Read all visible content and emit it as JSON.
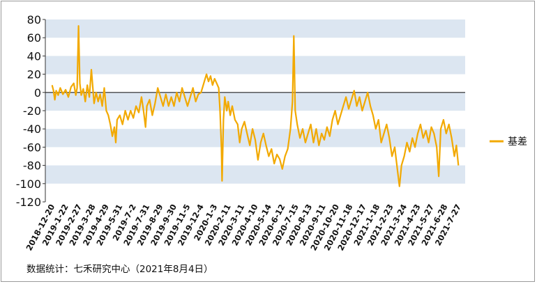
{
  "chart_data": {
    "type": "line",
    "title": "",
    "xlabel": "",
    "ylabel": "",
    "ylim": [
      -120,
      80
    ],
    "yticks": [
      -120,
      -100,
      -80,
      -60,
      -40,
      -20,
      0,
      20,
      40,
      60,
      80
    ],
    "grid": "horizontal bands",
    "legend_position": "right",
    "x_labels": [
      "2018-12-20",
      "2019-1-22",
      "2019-2-27",
      "2019-3-28",
      "2019-4-29",
      "2019-5-31",
      "2019-7-2",
      "2019-7-31",
      "2019-8-29",
      "2019-9-30",
      "2019-11-5",
      "2019-12-4",
      "2020-1-3",
      "2020-2-11",
      "2020-3-11",
      "2020-4-10",
      "2020-5-14",
      "2020-6-12",
      "2020-7-15",
      "2020-8-13",
      "2020-9-11",
      "2020-10-20",
      "2020-11-18",
      "2020-12-17",
      "2021-1-18",
      "2021-2-23",
      "2021-3-24",
      "2021-4-23",
      "2021-5-27",
      "2021-6-28",
      "2021-7-27"
    ],
    "series": [
      {
        "name": "基差",
        "color": "#f2a900",
        "values": [
          {
            "x": 0,
            "y": 8
          },
          {
            "x": 0.1,
            "y": 2
          },
          {
            "x": 0.2,
            "y": -8
          },
          {
            "x": 0.3,
            "y": 2
          },
          {
            "x": 0.45,
            "y": -3
          },
          {
            "x": 0.6,
            "y": 5
          },
          {
            "x": 0.8,
            "y": -2
          },
          {
            "x": 1.0,
            "y": 3
          },
          {
            "x": 1.2,
            "y": -5
          },
          {
            "x": 1.4,
            "y": 6
          },
          {
            "x": 1.6,
            "y": 10
          },
          {
            "x": 1.75,
            "y": -3
          },
          {
            "x": 1.85,
            "y": 5
          },
          {
            "x": 1.95,
            "y": 73
          },
          {
            "x": 2.05,
            "y": 10
          },
          {
            "x": 2.15,
            "y": -3
          },
          {
            "x": 2.3,
            "y": 4
          },
          {
            "x": 2.45,
            "y": -10
          },
          {
            "x": 2.6,
            "y": 8
          },
          {
            "x": 2.75,
            "y": -5
          },
          {
            "x": 2.9,
            "y": 25
          },
          {
            "x": 3.0,
            "y": 6
          },
          {
            "x": 3.1,
            "y": -12
          },
          {
            "x": 3.25,
            "y": 0
          },
          {
            "x": 3.4,
            "y": -10
          },
          {
            "x": 3.55,
            "y": -2
          },
          {
            "x": 3.7,
            "y": -15
          },
          {
            "x": 3.85,
            "y": 5
          },
          {
            "x": 4.0,
            "y": -20
          },
          {
            "x": 4.15,
            "y": -25
          },
          {
            "x": 4.3,
            "y": -35
          },
          {
            "x": 4.45,
            "y": -48
          },
          {
            "x": 4.6,
            "y": -38
          },
          {
            "x": 4.7,
            "y": -55
          },
          {
            "x": 4.8,
            "y": -30
          },
          {
            "x": 5.0,
            "y": -25
          },
          {
            "x": 5.2,
            "y": -35
          },
          {
            "x": 5.4,
            "y": -20
          },
          {
            "x": 5.6,
            "y": -30
          },
          {
            "x": 5.8,
            "y": -20
          },
          {
            "x": 6.0,
            "y": -28
          },
          {
            "x": 6.2,
            "y": -15
          },
          {
            "x": 6.4,
            "y": -22
          },
          {
            "x": 6.6,
            "y": -5
          },
          {
            "x": 6.75,
            "y": -20
          },
          {
            "x": 6.9,
            "y": -38
          },
          {
            "x": 7.0,
            "y": -15
          },
          {
            "x": 7.2,
            "y": -8
          },
          {
            "x": 7.4,
            "y": -25
          },
          {
            "x": 7.6,
            "y": -12
          },
          {
            "x": 7.8,
            "y": 5
          },
          {
            "x": 8.0,
            "y": -5
          },
          {
            "x": 8.2,
            "y": -15
          },
          {
            "x": 8.4,
            "y": -2
          },
          {
            "x": 8.6,
            "y": -15
          },
          {
            "x": 8.8,
            "y": -5
          },
          {
            "x": 9.0,
            "y": -15
          },
          {
            "x": 9.2,
            "y": 0
          },
          {
            "x": 9.4,
            "y": -10
          },
          {
            "x": 9.6,
            "y": 5
          },
          {
            "x": 9.8,
            "y": -5
          },
          {
            "x": 10.0,
            "y": -15
          },
          {
            "x": 10.2,
            "y": -5
          },
          {
            "x": 10.4,
            "y": 5
          },
          {
            "x": 10.6,
            "y": -10
          },
          {
            "x": 10.8,
            "y": -2
          },
          {
            "x": 11.0,
            "y": 0
          },
          {
            "x": 11.2,
            "y": 10
          },
          {
            "x": 11.4,
            "y": 20
          },
          {
            "x": 11.55,
            "y": 12
          },
          {
            "x": 11.7,
            "y": 18
          },
          {
            "x": 11.85,
            "y": 8
          },
          {
            "x": 12.0,
            "y": 15
          },
          {
            "x": 12.15,
            "y": 10
          },
          {
            "x": 12.3,
            "y": 5
          },
          {
            "x": 12.4,
            "y": -20
          },
          {
            "x": 12.5,
            "y": -60
          },
          {
            "x": 12.55,
            "y": -97
          },
          {
            "x": 12.65,
            "y": -30
          },
          {
            "x": 12.75,
            "y": -5
          },
          {
            "x": 12.9,
            "y": -20
          },
          {
            "x": 13.0,
            "y": -10
          },
          {
            "x": 13.15,
            "y": -25
          },
          {
            "x": 13.3,
            "y": -15
          },
          {
            "x": 13.5,
            "y": -30
          },
          {
            "x": 13.7,
            "y": -35
          },
          {
            "x": 13.85,
            "y": -55
          },
          {
            "x": 14.0,
            "y": -40
          },
          {
            "x": 14.2,
            "y": -32
          },
          {
            "x": 14.4,
            "y": -45
          },
          {
            "x": 14.6,
            "y": -58
          },
          {
            "x": 14.8,
            "y": -40
          },
          {
            "x": 15.0,
            "y": -52
          },
          {
            "x": 15.2,
            "y": -74
          },
          {
            "x": 15.4,
            "y": -55
          },
          {
            "x": 15.6,
            "y": -45
          },
          {
            "x": 15.8,
            "y": -58
          },
          {
            "x": 16.0,
            "y": -70
          },
          {
            "x": 16.2,
            "y": -62
          },
          {
            "x": 16.4,
            "y": -78
          },
          {
            "x": 16.6,
            "y": -68
          },
          {
            "x": 16.8,
            "y": -73
          },
          {
            "x": 17.0,
            "y": -84
          },
          {
            "x": 17.2,
            "y": -70
          },
          {
            "x": 17.4,
            "y": -62
          },
          {
            "x": 17.6,
            "y": -40
          },
          {
            "x": 17.75,
            "y": -10
          },
          {
            "x": 17.85,
            "y": 62
          },
          {
            "x": 17.95,
            "y": -20
          },
          {
            "x": 18.1,
            "y": -35
          },
          {
            "x": 18.3,
            "y": -50
          },
          {
            "x": 18.5,
            "y": -40
          },
          {
            "x": 18.7,
            "y": -55
          },
          {
            "x": 18.9,
            "y": -45
          },
          {
            "x": 19.1,
            "y": -35
          },
          {
            "x": 19.3,
            "y": -55
          },
          {
            "x": 19.5,
            "y": -40
          },
          {
            "x": 19.7,
            "y": -58
          },
          {
            "x": 19.9,
            "y": -45
          },
          {
            "x": 20.1,
            "y": -52
          },
          {
            "x": 20.3,
            "y": -38
          },
          {
            "x": 20.5,
            "y": -48
          },
          {
            "x": 20.7,
            "y": -30
          },
          {
            "x": 20.9,
            "y": -20
          },
          {
            "x": 21.1,
            "y": -35
          },
          {
            "x": 21.3,
            "y": -25
          },
          {
            "x": 21.5,
            "y": -15
          },
          {
            "x": 21.7,
            "y": -5
          },
          {
            "x": 21.9,
            "y": -18
          },
          {
            "x": 22.1,
            "y": -8
          },
          {
            "x": 22.3,
            "y": 2
          },
          {
            "x": 22.5,
            "y": -15
          },
          {
            "x": 22.7,
            "y": -5
          },
          {
            "x": 22.9,
            "y": -20
          },
          {
            "x": 23.1,
            "y": -10
          },
          {
            "x": 23.3,
            "y": 0
          },
          {
            "x": 23.5,
            "y": -15
          },
          {
            "x": 23.7,
            "y": -25
          },
          {
            "x": 23.9,
            "y": -40
          },
          {
            "x": 24.1,
            "y": -30
          },
          {
            "x": 24.3,
            "y": -55
          },
          {
            "x": 24.5,
            "y": -45
          },
          {
            "x": 24.7,
            "y": -35
          },
          {
            "x": 24.9,
            "y": -50
          },
          {
            "x": 25.1,
            "y": -70
          },
          {
            "x": 25.3,
            "y": -60
          },
          {
            "x": 25.5,
            "y": -85
          },
          {
            "x": 25.65,
            "y": -103
          },
          {
            "x": 25.8,
            "y": -80
          },
          {
            "x": 26.0,
            "y": -70
          },
          {
            "x": 26.2,
            "y": -55
          },
          {
            "x": 26.4,
            "y": -65
          },
          {
            "x": 26.6,
            "y": -50
          },
          {
            "x": 26.8,
            "y": -60
          },
          {
            "x": 27.0,
            "y": -45
          },
          {
            "x": 27.2,
            "y": -35
          },
          {
            "x": 27.4,
            "y": -50
          },
          {
            "x": 27.6,
            "y": -42
          },
          {
            "x": 27.8,
            "y": -55
          },
          {
            "x": 28.0,
            "y": -38
          },
          {
            "x": 28.2,
            "y": -45
          },
          {
            "x": 28.4,
            "y": -60
          },
          {
            "x": 28.55,
            "y": -92
          },
          {
            "x": 28.7,
            "y": -40
          },
          {
            "x": 28.9,
            "y": -30
          },
          {
            "x": 29.1,
            "y": -45
          },
          {
            "x": 29.3,
            "y": -35
          },
          {
            "x": 29.5,
            "y": -50
          },
          {
            "x": 29.7,
            "y": -70
          },
          {
            "x": 29.85,
            "y": -58
          },
          {
            "x": 30.0,
            "y": -80
          }
        ]
      }
    ]
  },
  "source_note": "数据统计：七禾研究中心（2021年8月4日）"
}
